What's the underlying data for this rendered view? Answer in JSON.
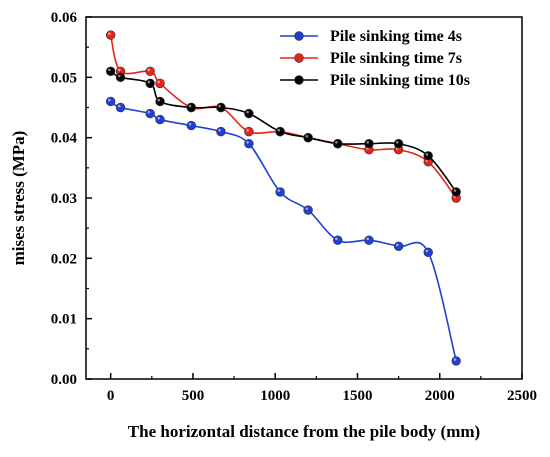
{
  "chart_data": {
    "type": "line",
    "title": "",
    "xlabel": "The horizontal distance from the pile body (mm)",
    "ylabel": "mises stress (MPa)",
    "xlim": [
      -150,
      2500
    ],
    "ylim": [
      0.0,
      0.06
    ],
    "x_ticks": [
      0,
      500,
      1000,
      1500,
      2000,
      2500
    ],
    "x_tick_labels": [
      "0",
      "500",
      "1000",
      "1500",
      "2000",
      "2500"
    ],
    "y_ticks": [
      0.0,
      0.01,
      0.02,
      0.03,
      0.04,
      0.05,
      0.06
    ],
    "y_tick_labels": [
      "0.00",
      "0.01",
      "0.02",
      "0.03",
      "0.04",
      "0.05",
      "0.06"
    ],
    "grid": false,
    "legend_position": "top-right",
    "smooth": true,
    "series": [
      {
        "name": "Pile sinking time 4s",
        "color": "#1f3fd6",
        "points": [
          {
            "x": 0,
            "y": 0.046
          },
          {
            "x": 60,
            "y": 0.045
          },
          {
            "x": 240,
            "y": 0.044
          },
          {
            "x": 300,
            "y": 0.043
          },
          {
            "x": 490,
            "y": 0.042
          },
          {
            "x": 670,
            "y": 0.041
          },
          {
            "x": 840,
            "y": 0.039
          },
          {
            "x": 1030,
            "y": 0.031
          },
          {
            "x": 1200,
            "y": 0.028
          },
          {
            "x": 1380,
            "y": 0.023
          },
          {
            "x": 1570,
            "y": 0.023
          },
          {
            "x": 1750,
            "y": 0.022
          },
          {
            "x": 1930,
            "y": 0.021
          },
          {
            "x": 2100,
            "y": 0.003
          }
        ]
      },
      {
        "name": "Pile sinking time 7s",
        "color": "#e8231b",
        "points": [
          {
            "x": 0,
            "y": 0.057
          },
          {
            "x": 60,
            "y": 0.051
          },
          {
            "x": 240,
            "y": 0.051
          },
          {
            "x": 300,
            "y": 0.049
          },
          {
            "x": 490,
            "y": 0.045
          },
          {
            "x": 670,
            "y": 0.045
          },
          {
            "x": 840,
            "y": 0.041
          },
          {
            "x": 1030,
            "y": 0.041
          },
          {
            "x": 1200,
            "y": 0.04
          },
          {
            "x": 1380,
            "y": 0.039
          },
          {
            "x": 1570,
            "y": 0.038
          },
          {
            "x": 1750,
            "y": 0.038
          },
          {
            "x": 1930,
            "y": 0.036
          },
          {
            "x": 2100,
            "y": 0.03
          }
        ]
      },
      {
        "name": "Pile sinking time 10s",
        "color": "#000000",
        "points": [
          {
            "x": 0,
            "y": 0.051
          },
          {
            "x": 60,
            "y": 0.05
          },
          {
            "x": 240,
            "y": 0.049
          },
          {
            "x": 300,
            "y": 0.046
          },
          {
            "x": 490,
            "y": 0.045
          },
          {
            "x": 670,
            "y": 0.045
          },
          {
            "x": 840,
            "y": 0.044
          },
          {
            "x": 1030,
            "y": 0.041
          },
          {
            "x": 1200,
            "y": 0.04
          },
          {
            "x": 1380,
            "y": 0.039
          },
          {
            "x": 1570,
            "y": 0.039
          },
          {
            "x": 1750,
            "y": 0.039
          },
          {
            "x": 1930,
            "y": 0.037
          },
          {
            "x": 2100,
            "y": 0.031
          }
        ]
      }
    ]
  }
}
